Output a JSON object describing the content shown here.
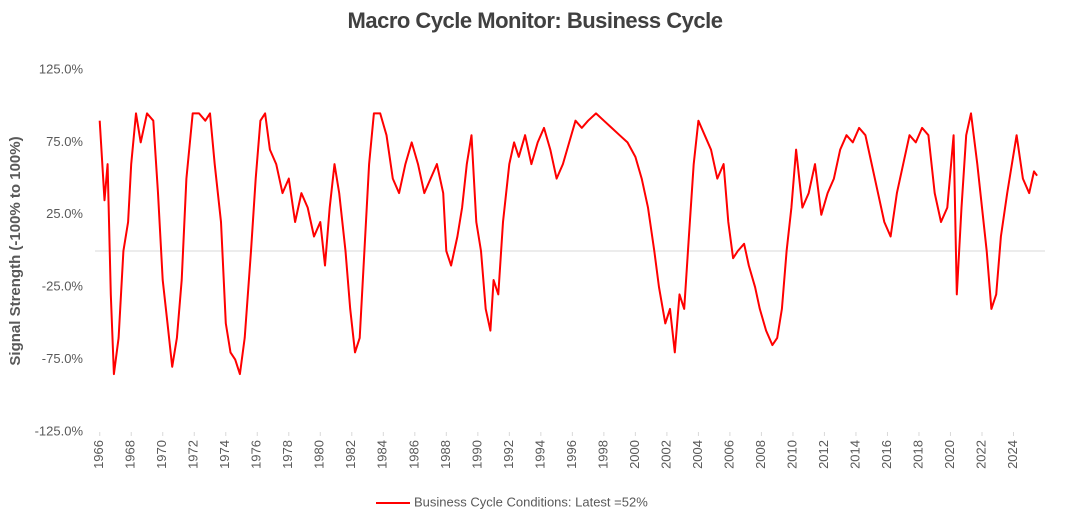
{
  "chart_data": {
    "type": "line",
    "title": "Macro Cycle Monitor: Business Cycle",
    "y_label": "Signal Strength (-100% to 100%)",
    "x": [
      1966.0,
      1966.3,
      1966.5,
      1966.7,
      1966.9,
      1967.2,
      1967.5,
      1967.8,
      1968.0,
      1968.3,
      1968.6,
      1969.0,
      1969.4,
      1969.7,
      1970.0,
      1970.3,
      1970.6,
      1970.9,
      1971.2,
      1971.5,
      1971.9,
      1972.3,
      1972.7,
      1973.0,
      1973.3,
      1973.7,
      1974.0,
      1974.3,
      1974.6,
      1974.9,
      1975.2,
      1975.6,
      1975.9,
      1976.2,
      1976.5,
      1976.8,
      1977.2,
      1977.6,
      1978.0,
      1978.4,
      1978.8,
      1979.2,
      1979.6,
      1980.0,
      1980.3,
      1980.6,
      1980.9,
      1981.2,
      1981.6,
      1981.9,
      1982.2,
      1982.5,
      1982.8,
      1983.1,
      1983.4,
      1983.8,
      1984.2,
      1984.6,
      1985.0,
      1985.4,
      1985.8,
      1986.2,
      1986.6,
      1987.0,
      1987.4,
      1987.8,
      1988.0,
      1988.3,
      1988.7,
      1989.0,
      1989.3,
      1989.6,
      1989.9,
      1990.2,
      1990.5,
      1990.8,
      1991.0,
      1991.3,
      1991.6,
      1992.0,
      1992.3,
      1992.6,
      1993.0,
      1993.4,
      1993.8,
      1994.2,
      1994.6,
      1995.0,
      1995.4,
      1995.8,
      1996.2,
      1996.6,
      1997.0,
      1997.5,
      1998.0,
      1998.5,
      1999.0,
      1999.5,
      2000.0,
      2000.4,
      2000.8,
      2001.2,
      2001.5,
      2001.9,
      2002.2,
      2002.5,
      2002.8,
      2003.1,
      2003.4,
      2003.7,
      2004.0,
      2004.4,
      2004.8,
      2005.2,
      2005.6,
      2005.9,
      2006.2,
      2006.5,
      2006.9,
      2007.2,
      2007.6,
      2007.9,
      2008.3,
      2008.7,
      2009.0,
      2009.3,
      2009.6,
      2009.9,
      2010.2,
      2010.6,
      2011.0,
      2011.4,
      2011.8,
      2012.2,
      2012.6,
      2013.0,
      2013.4,
      2013.8,
      2014.2,
      2014.6,
      2015.0,
      2015.4,
      2015.8,
      2016.2,
      2016.6,
      2017.0,
      2017.4,
      2017.8,
      2018.2,
      2018.6,
      2019.0,
      2019.4,
      2019.8,
      2020.2,
      2020.4,
      2020.7,
      2021.0,
      2021.3,
      2021.7,
      2022.0,
      2022.3,
      2022.6,
      2022.9,
      2023.2,
      2023.6,
      2023.9,
      2024.2,
      2024.6,
      2025.0,
      2025.3,
      2025.5
    ],
    "series": [
      {
        "name": "Business Cycle Conditions: Latest =52%",
        "color": "#ff0000",
        "values": [
          90,
          35,
          60,
          -30,
          -85,
          -60,
          0,
          20,
          60,
          95,
          75,
          95,
          90,
          40,
          -20,
          -50,
          -80,
          -60,
          -20,
          50,
          95,
          95,
          90,
          95,
          60,
          20,
          -50,
          -70,
          -75,
          -85,
          -60,
          0,
          50,
          90,
          95,
          70,
          60,
          40,
          50,
          20,
          40,
          30,
          10,
          20,
          -10,
          30,
          60,
          40,
          0,
          -40,
          -70,
          -60,
          0,
          60,
          95,
          95,
          80,
          50,
          40,
          60,
          75,
          60,
          40,
          50,
          60,
          40,
          0,
          -10,
          10,
          30,
          60,
          80,
          20,
          0,
          -40,
          -55,
          -20,
          -30,
          20,
          60,
          75,
          65,
          80,
          60,
          75,
          85,
          70,
          50,
          60,
          75,
          90,
          85,
          90,
          95,
          90,
          85,
          80,
          75,
          65,
          50,
          30,
          0,
          -25,
          -50,
          -40,
          -70,
          -30,
          -40,
          10,
          60,
          90,
          80,
          70,
          50,
          60,
          20,
          -5,
          0,
          5,
          -10,
          -25,
          -40,
          -55,
          -65,
          -60,
          -40,
          0,
          30,
          70,
          30,
          40,
          60,
          25,
          40,
          50,
          70,
          80,
          75,
          85,
          80,
          60,
          40,
          20,
          10,
          40,
          60,
          80,
          75,
          85,
          80,
          40,
          20,
          30,
          80,
          -30,
          30,
          80,
          95,
          60,
          30,
          0,
          -40,
          -30,
          10,
          40,
          60,
          80,
          50,
          40,
          55,
          52
        ]
      }
    ],
    "xlim": [
      1965.7,
      2026.0
    ],
    "xticks": [
      1966,
      1968,
      1970,
      1972,
      1974,
      1976,
      1978,
      1980,
      1982,
      1984,
      1986,
      1988,
      1990,
      1992,
      1994,
      1996,
      1998,
      2000,
      2002,
      2004,
      2006,
      2008,
      2010,
      2012,
      2014,
      2016,
      2018,
      2020,
      2022,
      2024
    ],
    "ylim": [
      -125,
      125
    ],
    "yticks": [
      {
        "value": -125,
        "label": "-125.0%"
      },
      {
        "value": -75,
        "label": "-75.0%"
      },
      {
        "value": -25,
        "label": "-25.0%"
      },
      {
        "value": 25,
        "label": "25.0%"
      },
      {
        "value": 75,
        "label": "75.0%"
      },
      {
        "value": 125,
        "label": "125.0%"
      }
    ],
    "grid": false,
    "legend": "bottom"
  }
}
